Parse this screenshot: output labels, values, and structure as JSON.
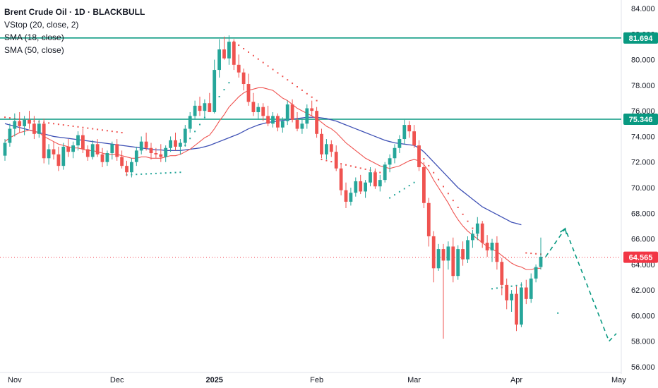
{
  "legend": {
    "title": "Brent Crude Oil · 1D · BLACKBULL",
    "indicators": [
      "VStop (20, close, 2)",
      "SMA (18, close)",
      "SMA (50, close)"
    ]
  },
  "colors": {
    "up": "#26a69a",
    "down": "#ef5350",
    "sma18": "#ef5350",
    "sma50": "#3f51b5",
    "vstop_up": "#26a69a",
    "vstop_down": "#ef5350",
    "hline": "#089981",
    "price_tag": "#f23645",
    "forecast": "#089981"
  },
  "chart_data": {
    "type": "candlestick",
    "ylim": [
      56,
      84
    ],
    "y_ticks": [
      "84.000",
      "82.000",
      "80.000",
      "78.000",
      "76.000",
      "74.000",
      "72.000",
      "70.000",
      "68.000",
      "66.000",
      "64.000",
      "62.000",
      "60.000",
      "58.000",
      "56.000"
    ],
    "x_ticks": [
      {
        "label": "Nov",
        "bar": 2,
        "bold": false
      },
      {
        "label": "Dec",
        "bar": 23,
        "bold": false
      },
      {
        "label": "2025",
        "bar": 43,
        "bold": true
      },
      {
        "label": "Feb",
        "bar": 64,
        "bold": false
      },
      {
        "label": "Mar",
        "bar": 84,
        "bold": false
      },
      {
        "label": "Apr",
        "bar": 105,
        "bold": false
      },
      {
        "label": "May",
        "bar": 126,
        "bold": false
      }
    ],
    "candles": [
      [
        72.5,
        73.8,
        72.1,
        73.5
      ],
      [
        73.5,
        75.0,
        73.2,
        74.6
      ],
      [
        74.6,
        75.8,
        74.0,
        75.2
      ],
      [
        75.2,
        75.9,
        74.3,
        74.8
      ],
      [
        74.8,
        75.6,
        74.1,
        75.3
      ],
      [
        75.3,
        76.0,
        74.6,
        75.0
      ],
      [
        75.0,
        75.6,
        73.8,
        74.2
      ],
      [
        74.2,
        75.3,
        73.9,
        75.0
      ],
      [
        75.0,
        75.4,
        71.9,
        72.3
      ],
      [
        72.3,
        73.4,
        71.8,
        73.0
      ],
      [
        73.0,
        73.6,
        72.2,
        72.6
      ],
      [
        72.6,
        73.2,
        71.3,
        71.7
      ],
      [
        71.7,
        73.5,
        71.4,
        73.2
      ],
      [
        73.2,
        73.8,
        72.4,
        72.8
      ],
      [
        72.8,
        73.6,
        72.3,
        73.3
      ],
      [
        73.3,
        74.4,
        72.9,
        74.1
      ],
      [
        74.1,
        74.6,
        72.7,
        73.0
      ],
      [
        73.0,
        73.3,
        72.1,
        72.4
      ],
      [
        72.4,
        73.7,
        72.2,
        73.4
      ],
      [
        73.4,
        73.8,
        72.4,
        72.6
      ],
      [
        72.6,
        73.1,
        71.6,
        72.0
      ],
      [
        72.0,
        72.9,
        71.7,
        72.7
      ],
      [
        72.7,
        73.6,
        72.2,
        73.4
      ],
      [
        73.4,
        73.8,
        72.1,
        72.4
      ],
      [
        72.4,
        72.9,
        71.5,
        71.7
      ],
      [
        71.7,
        72.1,
        70.9,
        71.2
      ],
      [
        71.2,
        72.3,
        70.8,
        72.0
      ],
      [
        72.0,
        73.2,
        71.7,
        72.9
      ],
      [
        72.9,
        74.0,
        72.6,
        73.6
      ],
      [
        73.6,
        74.3,
        72.9,
        73.1
      ],
      [
        73.1,
        73.5,
        72.2,
        72.7
      ],
      [
        72.7,
        73.1,
        72.3,
        72.6
      ],
      [
        72.6,
        73.4,
        72.0,
        72.4
      ],
      [
        72.4,
        73.3,
        72.0,
        73.1
      ],
      [
        73.1,
        74.0,
        72.8,
        73.7
      ],
      [
        73.7,
        74.3,
        72.9,
        73.2
      ],
      [
        73.2,
        73.8,
        72.6,
        73.5
      ],
      [
        73.5,
        74.9,
        73.2,
        74.6
      ],
      [
        74.6,
        75.9,
        74.3,
        75.6
      ],
      [
        75.6,
        76.8,
        75.3,
        76.4
      ],
      [
        76.4,
        77.1,
        75.6,
        76.0
      ],
      [
        76.0,
        76.9,
        75.5,
        76.6
      ],
      [
        76.6,
        77.4,
        76.1,
        75.9
      ],
      [
        75.9,
        80.0,
        75.8,
        79.2
      ],
      [
        79.2,
        81.6,
        78.6,
        80.8
      ],
      [
        80.8,
        81.8,
        80.0,
        80.1
      ],
      [
        80.1,
        81.9,
        79.6,
        81.4
      ],
      [
        81.4,
        81.6,
        79.2,
        79.6
      ],
      [
        79.6,
        80.4,
        78.6,
        79.0
      ],
      [
        79.0,
        79.3,
        77.6,
        78.1
      ],
      [
        78.1,
        78.9,
        76.4,
        76.7
      ],
      [
        76.7,
        77.4,
        75.6,
        75.9
      ],
      [
        75.9,
        76.6,
        75.3,
        76.3
      ],
      [
        76.3,
        76.6,
        75.2,
        75.6
      ],
      [
        75.6,
        76.4,
        74.8,
        75.0
      ],
      [
        75.0,
        75.9,
        74.7,
        75.6
      ],
      [
        75.6,
        75.8,
        74.4,
        74.7
      ],
      [
        74.7,
        75.5,
        74.3,
        75.2
      ],
      [
        75.2,
        76.8,
        74.9,
        76.5
      ],
      [
        76.5,
        76.9,
        75.1,
        75.3
      ],
      [
        75.3,
        75.9,
        74.4,
        74.6
      ],
      [
        74.6,
        75.4,
        74.2,
        75.0
      ],
      [
        75.0,
        76.5,
        74.6,
        76.2
      ],
      [
        76.2,
        76.8,
        75.6,
        76.0
      ],
      [
        76.0,
        76.3,
        73.9,
        74.2
      ],
      [
        74.2,
        74.6,
        72.3,
        72.6
      ],
      [
        72.6,
        73.8,
        72.2,
        73.4
      ],
      [
        73.4,
        73.7,
        72.4,
        72.8
      ],
      [
        72.8,
        73.3,
        71.3,
        71.5
      ],
      [
        71.5,
        71.8,
        69.4,
        69.8
      ],
      [
        69.8,
        70.4,
        68.4,
        68.9
      ],
      [
        68.9,
        70.0,
        68.6,
        69.6
      ],
      [
        69.6,
        70.8,
        69.3,
        70.5
      ],
      [
        70.5,
        71.0,
        69.5,
        69.7
      ],
      [
        69.7,
        70.6,
        69.2,
        70.4
      ],
      [
        70.4,
        71.6,
        70.1,
        71.2
      ],
      [
        71.2,
        71.5,
        69.9,
        70.1
      ],
      [
        70.1,
        71.0,
        69.7,
        70.6
      ],
      [
        70.6,
        72.0,
        70.4,
        71.8
      ],
      [
        71.8,
        72.6,
        71.2,
        72.3
      ],
      [
        72.3,
        73.4,
        71.9,
        73.1
      ],
      [
        73.1,
        74.1,
        72.7,
        73.8
      ],
      [
        73.8,
        75.3,
        73.4,
        74.9
      ],
      [
        74.9,
        75.2,
        73.9,
        74.4
      ],
      [
        74.4,
        74.9,
        73.1,
        73.3
      ],
      [
        73.3,
        73.7,
        71.3,
        71.6
      ],
      [
        71.6,
        72.0,
        68.4,
        68.8
      ],
      [
        68.8,
        69.2,
        65.4,
        66.2
      ],
      [
        66.2,
        66.6,
        62.6,
        63.7
      ],
      [
        63.7,
        65.6,
        63.5,
        65.2
      ],
      [
        65.2,
        65.6,
        58.2,
        64.3
      ],
      [
        64.3,
        65.8,
        63.6,
        65.4
      ],
      [
        65.4,
        66.1,
        62.6,
        63.1
      ],
      [
        63.1,
        65.5,
        62.8,
        65.2
      ],
      [
        65.2,
        65.8,
        63.9,
        64.4
      ],
      [
        64.4,
        66.2,
        64.1,
        65.9
      ],
      [
        65.9,
        66.7,
        65.3,
        66.4
      ],
      [
        66.4,
        67.7,
        65.9,
        67.2
      ],
      [
        67.2,
        67.4,
        65.3,
        65.7
      ],
      [
        65.7,
        66.3,
        64.6,
        65.1
      ],
      [
        65.1,
        66.0,
        64.2,
        65.7
      ],
      [
        65.7,
        66.2,
        63.6,
        64.2
      ],
      [
        64.2,
        64.5,
        61.6,
        62.4
      ],
      [
        62.4,
        62.9,
        60.5,
        61.2
      ],
      [
        61.2,
        62.0,
        60.3,
        61.7
      ],
      [
        61.7,
        62.3,
        58.8,
        59.3
      ],
      [
        59.3,
        62.6,
        59.1,
        62.2
      ],
      [
        62.2,
        62.8,
        60.9,
        61.3
      ],
      [
        61.3,
        63.3,
        61.0,
        62.9
      ],
      [
        62.9,
        64.0,
        62.6,
        63.8
      ],
      [
        63.8,
        66.1,
        63.6,
        64.6
      ]
    ],
    "sma18": [
      73.6,
      73.9,
      74.1,
      74.3,
      74.4,
      74.5,
      74.4,
      74.3,
      74.0,
      73.8,
      73.6,
      73.4,
      73.3,
      73.2,
      73.1,
      73.1,
      73.0,
      72.9,
      72.9,
      72.8,
      72.7,
      72.6,
      72.6,
      72.6,
      72.5,
      72.4,
      72.3,
      72.3,
      72.4,
      72.4,
      72.3,
      72.3,
      72.3,
      72.4,
      72.5,
      72.5,
      72.6,
      72.8,
      73.0,
      73.3,
      73.6,
      73.9,
      74.1,
      74.6,
      75.2,
      75.7,
      76.3,
      76.7,
      77.1,
      77.4,
      77.6,
      77.7,
      77.8,
      77.8,
      77.7,
      77.6,
      77.3,
      77.0,
      76.8,
      76.5,
      76.2,
      76.0,
      75.8,
      75.6,
      75.4,
      75.1,
      74.8,
      74.6,
      74.3,
      73.9,
      73.5,
      73.2,
      72.9,
      72.6,
      72.3,
      72.1,
      71.9,
      71.7,
      71.6,
      71.5,
      71.6,
      71.7,
      71.9,
      72.1,
      72.2,
      72.1,
      71.8,
      71.3,
      70.6,
      70.0,
      69.4,
      68.8,
      68.1,
      67.5,
      67.0,
      66.6,
      66.3,
      66.0,
      65.7,
      65.4,
      65.2,
      65.0,
      64.7,
      64.4,
      64.1,
      63.9,
      63.8,
      63.6,
      63.6,
      63.7,
      63.7
    ],
    "sma50": [
      75.0,
      74.9,
      74.8,
      74.7,
      74.6,
      74.5,
      74.4,
      74.3,
      74.2,
      74.1,
      74.0,
      73.95,
      73.9,
      73.85,
      73.8,
      73.75,
      73.7,
      73.65,
      73.6,
      73.55,
      73.5,
      73.45,
      73.4,
      73.35,
      73.3,
      73.25,
      73.2,
      73.15,
      73.1,
      73.05,
      73.0,
      72.95,
      72.95,
      72.9,
      72.9,
      72.9,
      72.9,
      72.95,
      73.0,
      73.05,
      73.1,
      73.2,
      73.3,
      73.45,
      73.6,
      73.75,
      73.9,
      74.05,
      74.2,
      74.4,
      74.6,
      74.75,
      74.9,
      75.0,
      75.1,
      75.15,
      75.2,
      75.25,
      75.3,
      75.35,
      75.4,
      75.45,
      75.5,
      75.5,
      75.5,
      75.45,
      75.4,
      75.3,
      75.2,
      75.05,
      74.9,
      74.75,
      74.6,
      74.45,
      74.3,
      74.15,
      74.0,
      73.85,
      73.7,
      73.6,
      73.5,
      73.45,
      73.4,
      73.35,
      73.3,
      73.1,
      72.8,
      72.4,
      72.0,
      71.6,
      71.2,
      70.8,
      70.4,
      70.0,
      69.7,
      69.4,
      69.1,
      68.8,
      68.5,
      68.3,
      68.1,
      67.9,
      67.7,
      67.5,
      67.3,
      67.2,
      67.1
    ],
    "vstop": [
      {
        "side": "down",
        "from": 0,
        "to": 24,
        "y0": 75.5,
        "y1": 74.3
      },
      {
        "side": "up",
        "from": 25,
        "to": 36,
        "y0": 71.0,
        "y1": 71.2
      },
      {
        "side": "up",
        "from": 37,
        "to": 46,
        "y0": 73.3,
        "y1": 78.2
      },
      {
        "side": "down",
        "from": 47,
        "to": 64,
        "y0": 81.4,
        "y1": 76.8
      },
      {
        "side": "down",
        "from": 65,
        "to": 78,
        "y0": 72.2,
        "y1": 71.1
      },
      {
        "side": "up",
        "from": 79,
        "to": 84,
        "y0": 69.2,
        "y1": 70.4
      },
      {
        "side": "down",
        "from": 85,
        "to": 99,
        "y0": 72.8,
        "y1": 65.2
      },
      {
        "side": "up",
        "from": 100,
        "to": 106,
        "y0": 62.1,
        "y1": 62.4
      },
      {
        "side": "down",
        "from": 107,
        "to": 110,
        "y0": 64.9,
        "y1": 64.8
      }
    ],
    "h_lines": [
      81.694,
      75.346
    ],
    "last_price": 64.565,
    "price_tags": [
      {
        "label": "81.694",
        "value": 81.694,
        "kind": "hline"
      },
      {
        "label": "75.346",
        "value": 75.346,
        "kind": "hline"
      },
      {
        "label": "64.565",
        "value": 64.565,
        "kind": "price"
      }
    ],
    "forecast": [
      {
        "bar": 111,
        "value": 64.6
      },
      {
        "bar": 115,
        "value": 66.8
      },
      {
        "bar": 124,
        "value": 58.0
      },
      {
        "bar": 125.5,
        "value": 58.6
      }
    ],
    "extra_dot": {
      "bar": 113.5,
      "value": 60.2
    }
  }
}
